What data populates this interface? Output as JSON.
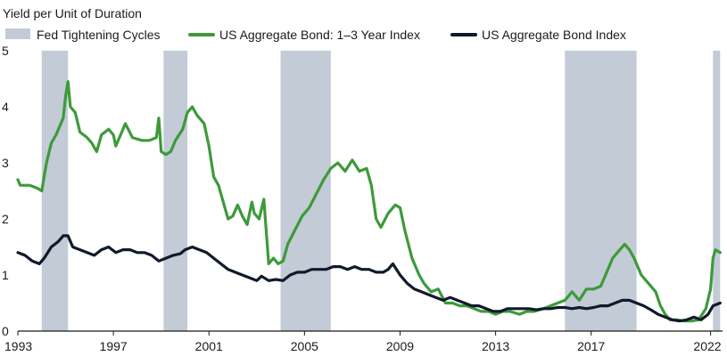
{
  "chart_data": {
    "type": "line",
    "ylabel": "Yield per Unit of Duration",
    "xlabel": "",
    "xlim": [
      1993,
      2022.5
    ],
    "ylim": [
      0,
      5
    ],
    "y_ticks": [
      0,
      1,
      2,
      3,
      4,
      5
    ],
    "x_ticks": [
      1993,
      1997,
      2001,
      2005,
      2009,
      2013,
      2017,
      2022
    ],
    "grid": false,
    "legend_position": "top",
    "legend": [
      {
        "label": "Fed Tightening Cycles",
        "kind": "band",
        "color": "#c2cbd6"
      },
      {
        "label": "US Aggregate Bond: 1–3 Year Index",
        "kind": "line",
        "color": "#3d9a3a"
      },
      {
        "label": "US Aggregate Bond Index",
        "kind": "line",
        "color": "#0f1a2b"
      }
    ],
    "shaded_periods": [
      {
        "start": 1994.0,
        "end": 1995.1
      },
      {
        "start": 1999.1,
        "end": 2000.1
      },
      {
        "start": 2004.0,
        "end": 2006.1
      },
      {
        "start": 2015.9,
        "end": 2018.9
      },
      {
        "start": 2022.1,
        "end": 2022.4
      }
    ],
    "series": [
      {
        "name": "US Aggregate Bond: 1–3 Year Index",
        "color": "#3d9a3a",
        "points": [
          [
            1993.0,
            2.7
          ],
          [
            1993.1,
            2.6
          ],
          [
            1993.3,
            2.6
          ],
          [
            1993.5,
            2.6
          ],
          [
            1993.8,
            2.55
          ],
          [
            1994.0,
            2.5
          ],
          [
            1994.2,
            3.0
          ],
          [
            1994.4,
            3.35
          ],
          [
            1994.6,
            3.5
          ],
          [
            1994.9,
            3.8
          ],
          [
            1995.0,
            4.2
          ],
          [
            1995.1,
            4.45
          ],
          [
            1995.2,
            4.0
          ],
          [
            1995.4,
            3.9
          ],
          [
            1995.6,
            3.55
          ],
          [
            1995.9,
            3.45
          ],
          [
            1996.1,
            3.35
          ],
          [
            1996.3,
            3.2
          ],
          [
            1996.5,
            3.5
          ],
          [
            1996.8,
            3.6
          ],
          [
            1997.0,
            3.5
          ],
          [
            1997.1,
            3.3
          ],
          [
            1997.3,
            3.5
          ],
          [
            1997.5,
            3.7
          ],
          [
            1997.8,
            3.45
          ],
          [
            1998.2,
            3.4
          ],
          [
            1998.5,
            3.4
          ],
          [
            1998.8,
            3.45
          ],
          [
            1998.9,
            3.8
          ],
          [
            1999.0,
            3.2
          ],
          [
            1999.2,
            3.15
          ],
          [
            1999.4,
            3.2
          ],
          [
            1999.6,
            3.4
          ],
          [
            1999.9,
            3.6
          ],
          [
            2000.1,
            3.9
          ],
          [
            2000.3,
            4.0
          ],
          [
            2000.5,
            3.85
          ],
          [
            2000.8,
            3.7
          ],
          [
            2001.0,
            3.3
          ],
          [
            2001.2,
            2.75
          ],
          [
            2001.4,
            2.6
          ],
          [
            2001.6,
            2.3
          ],
          [
            2001.8,
            2.0
          ],
          [
            2002.0,
            2.05
          ],
          [
            2002.2,
            2.25
          ],
          [
            2002.4,
            2.05
          ],
          [
            2002.6,
            1.9
          ],
          [
            2002.8,
            2.3
          ],
          [
            2002.9,
            2.1
          ],
          [
            2003.1,
            2.0
          ],
          [
            2003.3,
            2.35
          ],
          [
            2003.5,
            1.2
          ],
          [
            2003.7,
            1.3
          ],
          [
            2003.9,
            1.2
          ],
          [
            2004.1,
            1.25
          ],
          [
            2004.3,
            1.55
          ],
          [
            2004.6,
            1.8
          ],
          [
            2004.9,
            2.05
          ],
          [
            2005.2,
            2.2
          ],
          [
            2005.5,
            2.45
          ],
          [
            2005.8,
            2.7
          ],
          [
            2006.1,
            2.9
          ],
          [
            2006.4,
            3.0
          ],
          [
            2006.7,
            2.85
          ],
          [
            2007.0,
            3.05
          ],
          [
            2007.3,
            2.85
          ],
          [
            2007.6,
            2.9
          ],
          [
            2007.8,
            2.6
          ],
          [
            2008.0,
            2.0
          ],
          [
            2008.2,
            1.85
          ],
          [
            2008.5,
            2.1
          ],
          [
            2008.8,
            2.25
          ],
          [
            2009.0,
            2.2
          ],
          [
            2009.2,
            1.8
          ],
          [
            2009.5,
            1.3
          ],
          [
            2009.8,
            1.0
          ],
          [
            2010.0,
            0.85
          ],
          [
            2010.3,
            0.7
          ],
          [
            2010.6,
            0.75
          ],
          [
            2010.9,
            0.5
          ],
          [
            2011.2,
            0.5
          ],
          [
            2011.5,
            0.45
          ],
          [
            2011.8,
            0.45
          ],
          [
            2012.1,
            0.4
          ],
          [
            2012.4,
            0.35
          ],
          [
            2012.7,
            0.35
          ],
          [
            2013.0,
            0.3
          ],
          [
            2013.3,
            0.35
          ],
          [
            2013.6,
            0.35
          ],
          [
            2014.0,
            0.3
          ],
          [
            2014.3,
            0.35
          ],
          [
            2014.6,
            0.35
          ],
          [
            2015.0,
            0.4
          ],
          [
            2015.3,
            0.45
          ],
          [
            2015.6,
            0.5
          ],
          [
            2015.9,
            0.55
          ],
          [
            2016.2,
            0.7
          ],
          [
            2016.5,
            0.55
          ],
          [
            2016.8,
            0.75
          ],
          [
            2017.1,
            0.75
          ],
          [
            2017.4,
            0.8
          ],
          [
            2017.7,
            1.1
          ],
          [
            2017.9,
            1.3
          ],
          [
            2018.2,
            1.45
          ],
          [
            2018.4,
            1.55
          ],
          [
            2018.6,
            1.45
          ],
          [
            2018.8,
            1.3
          ],
          [
            2019.1,
            1.0
          ],
          [
            2019.4,
            0.85
          ],
          [
            2019.7,
            0.7
          ],
          [
            2019.9,
            0.45
          ],
          [
            2020.1,
            0.3
          ],
          [
            2020.3,
            0.2
          ],
          [
            2020.6,
            0.2
          ],
          [
            2020.9,
            0.18
          ],
          [
            2021.2,
            0.18
          ],
          [
            2021.5,
            0.2
          ],
          [
            2021.8,
            0.4
          ],
          [
            2022.0,
            0.75
          ],
          [
            2022.1,
            1.3
          ],
          [
            2022.2,
            1.45
          ],
          [
            2022.4,
            1.4
          ]
        ]
      },
      {
        "name": "US Aggregate Bond Index",
        "color": "#0f1a2b",
        "points": [
          [
            1993.0,
            1.4
          ],
          [
            1993.3,
            1.35
          ],
          [
            1993.6,
            1.25
          ],
          [
            1993.9,
            1.2
          ],
          [
            1994.1,
            1.3
          ],
          [
            1994.4,
            1.5
          ],
          [
            1994.7,
            1.6
          ],
          [
            1994.9,
            1.7
          ],
          [
            1995.1,
            1.7
          ],
          [
            1995.3,
            1.5
          ],
          [
            1995.6,
            1.45
          ],
          [
            1995.9,
            1.4
          ],
          [
            1996.2,
            1.35
          ],
          [
            1996.5,
            1.45
          ],
          [
            1996.8,
            1.5
          ],
          [
            1997.1,
            1.4
          ],
          [
            1997.4,
            1.45
          ],
          [
            1997.7,
            1.45
          ],
          [
            1998.0,
            1.4
          ],
          [
            1998.3,
            1.4
          ],
          [
            1998.6,
            1.35
          ],
          [
            1998.9,
            1.25
          ],
          [
            1999.2,
            1.3
          ],
          [
            1999.5,
            1.35
          ],
          [
            1999.8,
            1.38
          ],
          [
            2000.0,
            1.45
          ],
          [
            2000.3,
            1.5
          ],
          [
            2000.6,
            1.45
          ],
          [
            2000.9,
            1.4
          ],
          [
            2001.2,
            1.3
          ],
          [
            2001.5,
            1.2
          ],
          [
            2001.8,
            1.1
          ],
          [
            2002.1,
            1.05
          ],
          [
            2002.4,
            1.0
          ],
          [
            2002.7,
            0.95
          ],
          [
            2003.0,
            0.9
          ],
          [
            2003.2,
            0.98
          ],
          [
            2003.5,
            0.9
          ],
          [
            2003.8,
            0.92
          ],
          [
            2004.1,
            0.9
          ],
          [
            2004.4,
            1.0
          ],
          [
            2004.7,
            1.05
          ],
          [
            2005.0,
            1.05
          ],
          [
            2005.3,
            1.1
          ],
          [
            2005.6,
            1.1
          ],
          [
            2005.9,
            1.1
          ],
          [
            2006.2,
            1.15
          ],
          [
            2006.5,
            1.15
          ],
          [
            2006.8,
            1.1
          ],
          [
            2007.1,
            1.15
          ],
          [
            2007.4,
            1.1
          ],
          [
            2007.7,
            1.1
          ],
          [
            2008.0,
            1.05
          ],
          [
            2008.3,
            1.05
          ],
          [
            2008.5,
            1.1
          ],
          [
            2008.7,
            1.2
          ],
          [
            2009.0,
            1.0
          ],
          [
            2009.3,
            0.85
          ],
          [
            2009.6,
            0.75
          ],
          [
            2009.9,
            0.7
          ],
          [
            2010.2,
            0.65
          ],
          [
            2010.5,
            0.6
          ],
          [
            2010.8,
            0.55
          ],
          [
            2011.1,
            0.6
          ],
          [
            2011.4,
            0.55
          ],
          [
            2011.7,
            0.5
          ],
          [
            2012.0,
            0.45
          ],
          [
            2012.3,
            0.45
          ],
          [
            2012.6,
            0.4
          ],
          [
            2012.9,
            0.35
          ],
          [
            2013.2,
            0.35
          ],
          [
            2013.5,
            0.4
          ],
          [
            2013.8,
            0.4
          ],
          [
            2014.1,
            0.4
          ],
          [
            2014.4,
            0.4
          ],
          [
            2014.7,
            0.38
          ],
          [
            2015.0,
            0.4
          ],
          [
            2015.3,
            0.4
          ],
          [
            2015.6,
            0.42
          ],
          [
            2015.9,
            0.42
          ],
          [
            2016.2,
            0.4
          ],
          [
            2016.5,
            0.42
          ],
          [
            2016.8,
            0.4
          ],
          [
            2017.1,
            0.42
          ],
          [
            2017.4,
            0.45
          ],
          [
            2017.7,
            0.45
          ],
          [
            2018.0,
            0.5
          ],
          [
            2018.3,
            0.55
          ],
          [
            2018.6,
            0.55
          ],
          [
            2018.9,
            0.5
          ],
          [
            2019.2,
            0.45
          ],
          [
            2019.5,
            0.38
          ],
          [
            2019.8,
            0.3
          ],
          [
            2020.1,
            0.25
          ],
          [
            2020.4,
            0.2
          ],
          [
            2020.7,
            0.18
          ],
          [
            2021.0,
            0.2
          ],
          [
            2021.3,
            0.25
          ],
          [
            2021.6,
            0.2
          ],
          [
            2021.9,
            0.3
          ],
          [
            2022.1,
            0.45
          ],
          [
            2022.4,
            0.5
          ]
        ]
      }
    ]
  }
}
